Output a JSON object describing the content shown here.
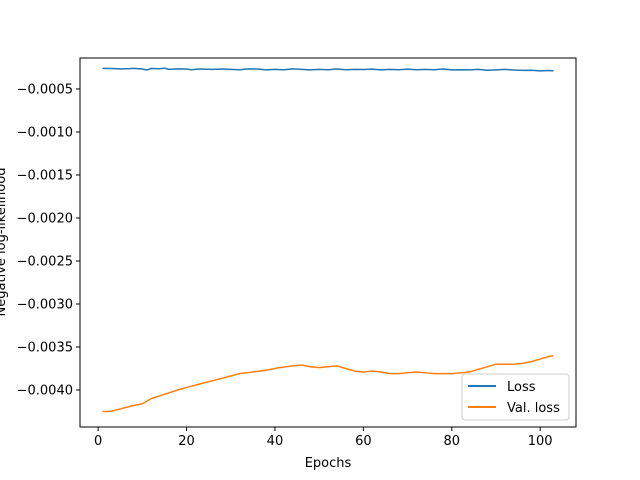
{
  "chart_data": {
    "type": "line",
    "title": "",
    "xlabel": "Epochs",
    "ylabel": "Negative log-likelihood",
    "xlim": [
      -4.1,
      108.1
    ],
    "ylim": [
      -0.00443,
      -0.00014
    ],
    "xticks": [
      0,
      20,
      40,
      60,
      80,
      100
    ],
    "xtick_labels": [
      "0",
      "20",
      "40",
      "60",
      "80",
      "100"
    ],
    "yticks": [
      -0.0005,
      -0.001,
      -0.0015,
      -0.002,
      -0.0025,
      -0.003,
      -0.0035,
      -0.004
    ],
    "ytick_labels": [
      "−0.0005",
      "−0.0010",
      "−0.0015",
      "−0.0020",
      "−0.0025",
      "−0.0030",
      "−0.0035",
      "−0.0040"
    ],
    "grid": false,
    "legend_position": "lower-right",
    "series": [
      {
        "name": "Loss",
        "color": "#1f77b4",
        "points": [
          [
            1,
            -0.00026
          ],
          [
            3,
            -0.000262
          ],
          [
            5,
            -0.000266
          ],
          [
            7,
            -0.000264
          ],
          [
            8,
            -0.00026
          ],
          [
            10,
            -0.000268
          ],
          [
            11,
            -0.00028
          ],
          [
            12,
            -0.000262
          ],
          [
            14,
            -0.000265
          ],
          [
            15,
            -0.000258
          ],
          [
            16,
            -0.000272
          ],
          [
            18,
            -0.000266
          ],
          [
            20,
            -0.000268
          ],
          [
            21,
            -0.000276
          ],
          [
            23,
            -0.000268
          ],
          [
            26,
            -0.000272
          ],
          [
            28,
            -0.000268
          ],
          [
            30,
            -0.000272
          ],
          [
            32,
            -0.000276
          ],
          [
            34,
            -0.000266
          ],
          [
            36,
            -0.000268
          ],
          [
            38,
            -0.000278
          ],
          [
            40,
            -0.000272
          ],
          [
            42,
            -0.000276
          ],
          [
            44,
            -0.000266
          ],
          [
            46,
            -0.000272
          ],
          [
            48,
            -0.000278
          ],
          [
            50,
            -0.000272
          ],
          [
            52,
            -0.000276
          ],
          [
            54,
            -0.000268
          ],
          [
            56,
            -0.000276
          ],
          [
            58,
            -0.000272
          ],
          [
            60,
            -0.000274
          ],
          [
            62,
            -0.00027
          ],
          [
            64,
            -0.000278
          ],
          [
            66,
            -0.000272
          ],
          [
            68,
            -0.000276
          ],
          [
            70,
            -0.00027
          ],
          [
            72,
            -0.000276
          ],
          [
            74,
            -0.000272
          ],
          [
            76,
            -0.000276
          ],
          [
            78,
            -0.000268
          ],
          [
            80,
            -0.000278
          ],
          [
            82,
            -0.000276
          ],
          [
            84,
            -0.000278
          ],
          [
            86,
            -0.000272
          ],
          [
            88,
            -0.000282
          ],
          [
            90,
            -0.000278
          ],
          [
            92,
            -0.000272
          ],
          [
            94,
            -0.00028
          ],
          [
            96,
            -0.000284
          ],
          [
            98,
            -0.000282
          ],
          [
            100,
            -0.00029
          ],
          [
            102,
            -0.000286
          ],
          [
            103,
            -0.00029
          ]
        ]
      },
      {
        "name": "Val. loss",
        "color": "#ff7f0e",
        "points": [
          [
            1,
            -0.00425
          ],
          [
            2,
            -0.00425
          ],
          [
            3,
            -0.004245
          ],
          [
            5,
            -0.00422
          ],
          [
            8,
            -0.00418
          ],
          [
            10,
            -0.00416
          ],
          [
            12,
            -0.0041
          ],
          [
            15,
            -0.00405
          ],
          [
            18,
            -0.004
          ],
          [
            20,
            -0.00397
          ],
          [
            23,
            -0.00393
          ],
          [
            26,
            -0.00389
          ],
          [
            29,
            -0.00385
          ],
          [
            32,
            -0.00381
          ],
          [
            35,
            -0.00379
          ],
          [
            38,
            -0.00377
          ],
          [
            41,
            -0.00374
          ],
          [
            44,
            -0.00372
          ],
          [
            46,
            -0.00371
          ],
          [
            48,
            -0.00373
          ],
          [
            50,
            -0.00374
          ],
          [
            52,
            -0.00373
          ],
          [
            54,
            -0.00372
          ],
          [
            56,
            -0.00375
          ],
          [
            58,
            -0.00378
          ],
          [
            60,
            -0.00379
          ],
          [
            62,
            -0.00378
          ],
          [
            64,
            -0.00379
          ],
          [
            66,
            -0.00381
          ],
          [
            68,
            -0.00381
          ],
          [
            70,
            -0.0038
          ],
          [
            72,
            -0.00379
          ],
          [
            74,
            -0.0038
          ],
          [
            76,
            -0.00381
          ],
          [
            78,
            -0.00381
          ],
          [
            80,
            -0.00381
          ],
          [
            82,
            -0.0038
          ],
          [
            84,
            -0.00379
          ],
          [
            86,
            -0.00376
          ],
          [
            88,
            -0.00373
          ],
          [
            90,
            -0.0037
          ],
          [
            92,
            -0.0037
          ],
          [
            94,
            -0.0037
          ],
          [
            96,
            -0.00369
          ],
          [
            98,
            -0.00367
          ],
          [
            100,
            -0.00364
          ],
          [
            102,
            -0.00361
          ],
          [
            103,
            -0.0036
          ]
        ]
      }
    ]
  }
}
